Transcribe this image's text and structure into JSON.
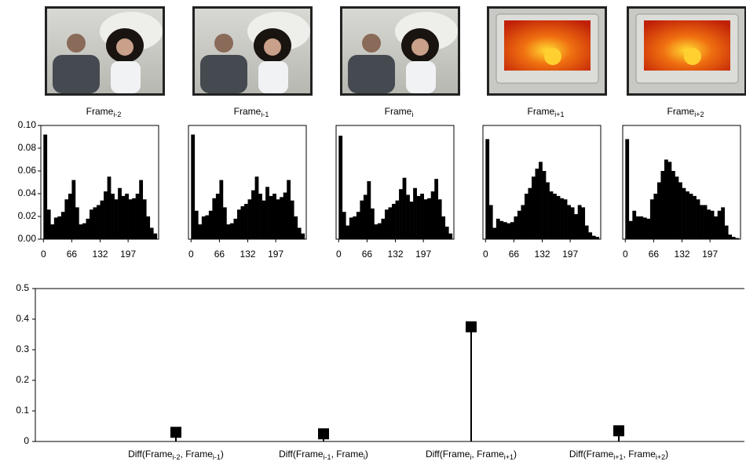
{
  "chart_data": [
    {
      "type": "histogram",
      "title": [
        "Frame",
        "i-2"
      ],
      "bins": [
        0,
        8.25,
        16.5,
        24.75,
        33,
        41.25,
        49.5,
        57.75,
        66,
        74.25,
        82.5,
        90.75,
        99,
        107.25,
        115.5,
        123.75,
        132,
        140.25,
        148.5,
        156.75,
        165,
        173.25,
        181.5,
        189.75,
        198,
        206.25,
        214.5,
        222.75,
        231,
        239.25,
        247.5,
        255.75,
        264
      ],
      "values": [
        0.092,
        0.026,
        0.013,
        0.019,
        0.02,
        0.024,
        0.035,
        0.04,
        0.052,
        0.028,
        0.013,
        0.014,
        0.018,
        0.026,
        0.028,
        0.03,
        0.034,
        0.042,
        0.055,
        0.04,
        0.035,
        0.045,
        0.038,
        0.04,
        0.035,
        0.036,
        0.04,
        0.052,
        0.035,
        0.02,
        0.01,
        0.005
      ],
      "color": "#000000",
      "xlim": [
        -6,
        268
      ],
      "xticks": [
        0,
        66,
        132,
        197
      ],
      "ylim": [
        0,
        0.1
      ],
      "yticks": [
        {
          "value": 0,
          "label": "0.00"
        },
        {
          "value": 0.02,
          "label": "0.02"
        },
        {
          "value": 0.04,
          "label": "0.04"
        },
        {
          "value": 0.06,
          "label": "0.06"
        },
        {
          "value": 0.08,
          "label": "0.08"
        },
        {
          "value": 0.1,
          "label": "0.10"
        }
      ]
    },
    {
      "type": "histogram",
      "title": [
        "Frame",
        "i-1"
      ],
      "bins": [
        0,
        8.25,
        16.5,
        24.75,
        33,
        41.25,
        49.5,
        57.75,
        66,
        74.25,
        82.5,
        90.75,
        99,
        107.25,
        115.5,
        123.75,
        132,
        140.25,
        148.5,
        156.75,
        165,
        173.25,
        181.5,
        189.75,
        198,
        206.25,
        214.5,
        222.75,
        231,
        239.25,
        247.5,
        255.75,
        264
      ],
      "values": [
        0.092,
        0.025,
        0.013,
        0.02,
        0.021,
        0.025,
        0.036,
        0.04,
        0.052,
        0.028,
        0.013,
        0.014,
        0.018,
        0.026,
        0.029,
        0.031,
        0.035,
        0.043,
        0.055,
        0.04,
        0.034,
        0.046,
        0.038,
        0.04,
        0.035,
        0.037,
        0.041,
        0.052,
        0.034,
        0.02,
        0.01,
        0.005
      ],
      "color": "#000000",
      "xlim": [
        -6,
        268
      ],
      "xticks": [
        0,
        66,
        132,
        197
      ],
      "ylim": [
        0,
        0.1
      ]
    },
    {
      "type": "histogram",
      "title": [
        "Frame",
        "i"
      ],
      "bins": [
        0,
        8.25,
        16.5,
        24.75,
        33,
        41.25,
        49.5,
        57.75,
        66,
        74.25,
        82.5,
        90.75,
        99,
        107.25,
        115.5,
        123.75,
        132,
        140.25,
        148.5,
        156.75,
        165,
        173.25,
        181.5,
        189.75,
        198,
        206.25,
        214.5,
        222.75,
        231,
        239.25,
        247.5,
        255.75,
        264
      ],
      "values": [
        0.091,
        0.024,
        0.012,
        0.019,
        0.02,
        0.024,
        0.034,
        0.039,
        0.051,
        0.027,
        0.013,
        0.014,
        0.018,
        0.026,
        0.028,
        0.031,
        0.034,
        0.044,
        0.054,
        0.039,
        0.033,
        0.045,
        0.038,
        0.04,
        0.035,
        0.036,
        0.042,
        0.053,
        0.035,
        0.02,
        0.011,
        0.005
      ],
      "color": "#000000",
      "xlim": [
        -6,
        268
      ],
      "xticks": [
        0,
        66,
        132,
        197
      ],
      "ylim": [
        0,
        0.1
      ]
    },
    {
      "type": "histogram",
      "title": [
        "Frame",
        "i+1"
      ],
      "bins": [
        0,
        8.25,
        16.5,
        24.75,
        33,
        41.25,
        49.5,
        57.75,
        66,
        74.25,
        82.5,
        90.75,
        99,
        107.25,
        115.5,
        123.75,
        132,
        140.25,
        148.5,
        156.75,
        165,
        173.25,
        181.5,
        189.75,
        198,
        206.25,
        214.5,
        222.75,
        231,
        239.25,
        247.5,
        255.75,
        264
      ],
      "values": [
        0.088,
        0.03,
        0.01,
        0.018,
        0.016,
        0.015,
        0.014,
        0.015,
        0.02,
        0.025,
        0.03,
        0.04,
        0.045,
        0.055,
        0.062,
        0.068,
        0.06,
        0.05,
        0.042,
        0.04,
        0.038,
        0.036,
        0.035,
        0.03,
        0.028,
        0.022,
        0.03,
        0.028,
        0.012,
        0.006,
        0.003,
        0.002
      ],
      "color": "#000000",
      "xlim": [
        -6,
        268
      ],
      "xticks": [
        0,
        66,
        132,
        197
      ],
      "ylim": [
        0,
        0.1
      ]
    },
    {
      "type": "histogram",
      "title": [
        "Frame",
        "i+2"
      ],
      "bins": [
        0,
        8.25,
        16.5,
        24.75,
        33,
        41.25,
        49.5,
        57.75,
        66,
        74.25,
        82.5,
        90.75,
        99,
        107.25,
        115.5,
        123.75,
        132,
        140.25,
        148.5,
        156.75,
        165,
        173.25,
        181.5,
        189.75,
        198,
        206.25,
        214.5,
        222.75,
        231,
        239.25,
        247.5,
        255.75,
        264
      ],
      "values": [
        0.088,
        0.016,
        0.025,
        0.02,
        0.02,
        0.019,
        0.018,
        0.035,
        0.04,
        0.05,
        0.06,
        0.07,
        0.068,
        0.06,
        0.055,
        0.05,
        0.045,
        0.042,
        0.04,
        0.038,
        0.035,
        0.03,
        0.03,
        0.026,
        0.025,
        0.02,
        0.025,
        0.028,
        0.012,
        0.004,
        0.002,
        0.001
      ],
      "color": "#000000",
      "xlim": [
        -6,
        268
      ],
      "xticks": [
        0,
        66,
        132,
        197
      ],
      "ylim": [
        0,
        0.1
      ]
    },
    {
      "type": "stem",
      "categories": [
        [
          "Diff(Frame",
          "i-2",
          ", Frame",
          "i-1",
          ")"
        ],
        [
          "Diff(Frame",
          "i-1",
          ", Frame",
          "i",
          ")"
        ],
        [
          "Diff(Frame",
          "i",
          ", Frame",
          "i+1",
          ")"
        ],
        [
          "Diff(Frame",
          "i+1",
          ", Frame",
          "i+2",
          ")"
        ]
      ],
      "values": [
        0.03,
        0.025,
        0.375,
        0.035
      ],
      "color": "#000000",
      "ylim": [
        0,
        0.5
      ],
      "yticks": [
        0,
        0.1,
        0.2,
        0.3,
        0.4,
        0.5
      ]
    }
  ]
}
